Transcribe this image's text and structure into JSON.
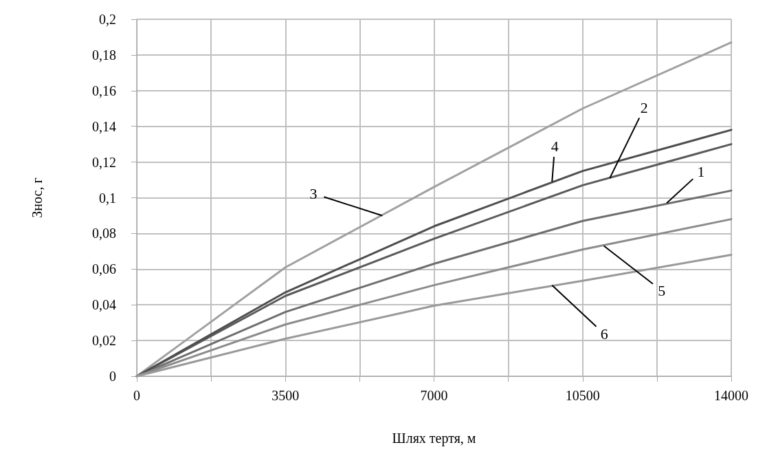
{
  "chart_data": {
    "type": "line",
    "xlabel": "Шлях тертя, м",
    "ylabel": "Знос, г",
    "x": [
      0,
      3500,
      7000,
      10500,
      14000
    ],
    "series": [
      {
        "color": "#6e6e6e",
        "values": [
          0,
          0.036,
          0.063,
          0.087,
          0.104
        ]
      },
      {
        "color": "#5a5a5a",
        "values": [
          0,
          0.045,
          0.077,
          0.107,
          0.13
        ]
      },
      {
        "color": "#a0a0a0",
        "values": [
          0,
          0.061,
          0.106,
          0.15,
          0.187
        ]
      },
      {
        "color": "#4e4e4e",
        "values": [
          0,
          0.047,
          0.084,
          0.115,
          0.138
        ]
      },
      {
        "color": "#8c8c8c",
        "values": [
          0,
          0.029,
          0.051,
          0.071,
          0.088
        ]
      },
      {
        "color": "#999999",
        "values": [
          0,
          0.021,
          0.0395,
          0.0535,
          0.068
        ]
      }
    ],
    "xlim": [
      0,
      14000
    ],
    "xticks": [
      0,
      {
        "value": 1750,
        "label": null
      },
      3500,
      {
        "value": 5250,
        "label": null
      },
      7000,
      {
        "value": 8750,
        "label": null
      },
      10500,
      {
        "value": 12250,
        "label": null
      },
      14000
    ],
    "ylim": [
      0,
      0.2
    ],
    "yticks": [
      {
        "value": 0,
        "label": "0"
      },
      {
        "value": 0.02,
        "label": "0,02"
      },
      {
        "value": 0.04,
        "label": "0,04"
      },
      {
        "value": 0.06,
        "label": "0,06"
      },
      {
        "value": 0.08,
        "label": "0,08"
      },
      {
        "value": 0.1,
        "label": "0,1"
      },
      {
        "value": 0.12,
        "label": "0,12"
      },
      {
        "value": 0.14,
        "label": "0,14"
      },
      {
        "value": 0.16,
        "label": "0,16"
      },
      {
        "value": 0.18,
        "label": "0,18"
      },
      {
        "value": 0.2,
        "label": "0,2"
      }
    ],
    "grid": true,
    "marker": "none",
    "line_style": "solid",
    "annotations": [
      {
        "text": "1",
        "x": 12480,
        "y": 0.097
      },
      {
        "text": "2",
        "x": 11140,
        "y": 0.111
      },
      {
        "text": "3",
        "x": 5780,
        "y": 0.09
      },
      {
        "text": "4",
        "x": 9780,
        "y": 0.109
      },
      {
        "text": "5",
        "x": 11000,
        "y": 0.073
      },
      {
        "text": "6",
        "x": 9780,
        "y": 0.051
      }
    ]
  }
}
